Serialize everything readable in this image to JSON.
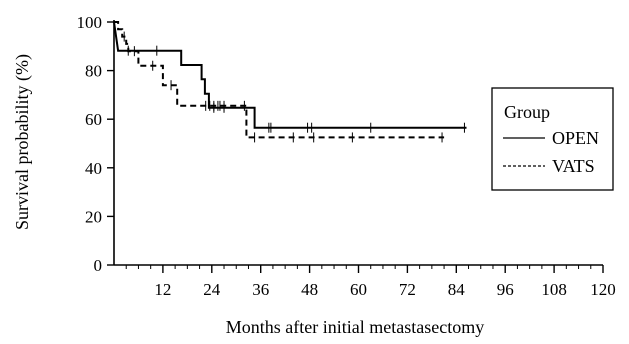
{
  "chart_data": {
    "type": "line",
    "subtype": "kaplan-meier step",
    "xlabel": "Months after initial metastasectomy",
    "ylabel": "Survival probability (%)",
    "xlim": [
      0,
      120
    ],
    "ylim": [
      0,
      100
    ],
    "x_ticks": [
      "12",
      "24",
      "36",
      "48",
      "60",
      "72",
      "84",
      "96",
      "108",
      "120"
    ],
    "y_ticks": [
      "0",
      "20",
      "40",
      "60",
      "80",
      "100"
    ],
    "grid": false,
    "legend": {
      "title": "Group",
      "placement": "right"
    },
    "series": [
      {
        "name": "OPEN",
        "line_style": "solid",
        "steps": [
          [
            0,
            100
          ],
          [
            1,
            88.2
          ],
          [
            16.5,
            88.2
          ],
          [
            16.5,
            82.3
          ],
          [
            21.5,
            82.3
          ],
          [
            21.5,
            76.4
          ],
          [
            22.3,
            76.4
          ],
          [
            22.3,
            70.5
          ],
          [
            23.3,
            70.5
          ],
          [
            23.3,
            64.7
          ],
          [
            34.5,
            64.7
          ],
          [
            34.5,
            56.5
          ],
          [
            86.5,
            56.5
          ]
        ],
        "censored": [
          [
            3.5,
            88.2
          ],
          [
            10.5,
            88.2
          ],
          [
            24.5,
            64.7
          ],
          [
            27,
            64.7
          ],
          [
            38,
            56.5
          ],
          [
            38.5,
            56.5
          ],
          [
            47.5,
            56.5
          ],
          [
            48.5,
            56.5
          ],
          [
            63,
            56.5
          ],
          [
            86,
            56.5
          ]
        ]
      },
      {
        "name": "VATS",
        "line_style": "dashed",
        "steps": [
          [
            0,
            100
          ],
          [
            1,
            100
          ],
          [
            1,
            97
          ],
          [
            2,
            97
          ],
          [
            2,
            94
          ],
          [
            3,
            94
          ],
          [
            3,
            91
          ],
          [
            3.5,
            91
          ],
          [
            3.5,
            88
          ],
          [
            6,
            88
          ],
          [
            6,
            82
          ],
          [
            12,
            82
          ],
          [
            12,
            74
          ],
          [
            15.5,
            74
          ],
          [
            15.5,
            65.5
          ],
          [
            32.5,
            65.5
          ],
          [
            32.5,
            52.5
          ],
          [
            81,
            52.5
          ]
        ],
        "censored": [
          [
            2.5,
            94
          ],
          [
            5,
            88
          ],
          [
            9.5,
            82
          ],
          [
            14,
            74
          ],
          [
            22.5,
            65.5
          ],
          [
            23.5,
            65.5
          ],
          [
            24.5,
            65.5
          ],
          [
            25.5,
            65.5
          ],
          [
            26,
            65.5
          ],
          [
            27,
            65.5
          ],
          [
            32,
            65.5
          ],
          [
            34.5,
            52.5
          ],
          [
            44,
            52.5
          ],
          [
            49,
            52.5
          ],
          [
            58.5,
            52.5
          ],
          [
            80.5,
            52.5
          ]
        ]
      }
    ]
  }
}
